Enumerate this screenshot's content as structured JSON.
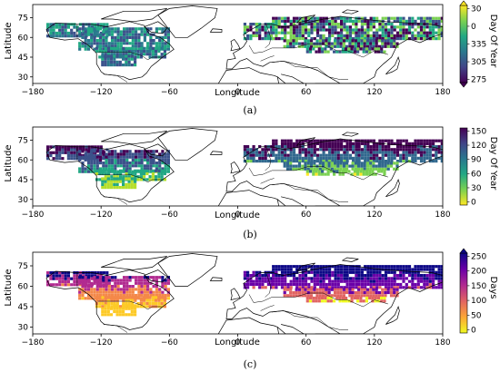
{
  "panels": [
    {
      "caption": "(a)",
      "xlabel": "Longitude",
      "ylabel": "Latitude",
      "xticks": [
        "−180",
        "−120",
        "−60",
        "0",
        "60",
        "120",
        "180"
      ],
      "yticks": [
        "75",
        "60",
        "45",
        "30"
      ],
      "colorbar": {
        "label": "Day Of Year",
        "ticks": [
          "30",
          "0",
          "335",
          "305",
          "275"
        ],
        "colors": [
          "#fde725",
          "#7ad151",
          "#22a884",
          "#2a788e",
          "#414487",
          "#440154"
        ]
      }
    },
    {
      "caption": "(b)",
      "xlabel": "Longitude",
      "ylabel": "Latitude",
      "xticks": [
        "−180",
        "−120",
        "−60",
        "0",
        "60",
        "120",
        "180"
      ],
      "yticks": [
        "75",
        "60",
        "45",
        "30"
      ],
      "colorbar": {
        "label": "Day Of Year",
        "ticks": [
          "150",
          "120",
          "90",
          "60",
          "30",
          "0"
        ],
        "colors": [
          "#440154",
          "#414487",
          "#2a788e",
          "#22a884",
          "#7ad151",
          "#fde725"
        ]
      }
    },
    {
      "caption": "(c)",
      "xlabel": "Longitude",
      "ylabel": "Latitude",
      "xticks": [
        "−180",
        "−120",
        "−60",
        "0",
        "60",
        "120",
        "180"
      ],
      "yticks": [
        "75",
        "60",
        "45",
        "30"
      ],
      "colorbar": {
        "label": "Days",
        "ticks": [
          "250",
          "200",
          "150",
          "100",
          "50",
          "0"
        ],
        "colors": [
          "#0d0887",
          "#6a00a8",
          "#b12a90",
          "#e16462",
          "#fca636",
          "#f0f921"
        ]
      }
    }
  ],
  "map_style": {
    "ocean": "#ffffff",
    "land_outline": "#000000",
    "panel_a": {
      "na": [
        "#2a788e",
        "#22a884",
        "#3b528b"
      ],
      "eu": [
        "#440154",
        "#3b528b",
        "#22a884",
        "#7ad151"
      ]
    },
    "panel_b": {
      "na": [
        "#440154",
        "#3b528b",
        "#22a884",
        "#b5de2b"
      ],
      "eu": [
        "#440154",
        "#31688e",
        "#7ad151",
        "#fde725"
      ]
    },
    "panel_c": {
      "na": [
        "#0d0887",
        "#b12a90",
        "#f48849",
        "#fdca26"
      ],
      "eu": [
        "#0d0887",
        "#6a00a8",
        "#e16462",
        "#f0f921"
      ]
    }
  }
}
